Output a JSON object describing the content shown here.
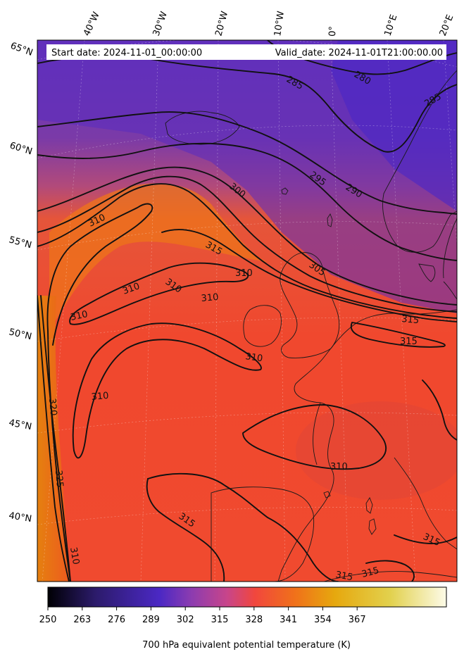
{
  "header": {
    "start_date": "Start date: 2024-11-01_00:00:00",
    "valid_date": "Valid_date: 2024-11-01T21:00:00.00"
  },
  "longitude_labels": [
    "40°W",
    "30°W",
    "20°W",
    "10°W",
    "0°",
    "10°E",
    "20°E"
  ],
  "latitude_labels": [
    "65°N",
    "60°N",
    "55°N",
    "50°N",
    "45°N",
    "40°N"
  ],
  "contour_labels": [
    "280",
    "285",
    "285",
    "295",
    "290",
    "300",
    "310",
    "315",
    "305",
    "310",
    "310",
    "310",
    "310",
    "310",
    "315",
    "315",
    "310",
    "310",
    "320",
    "325",
    "310",
    "315",
    "315",
    "310",
    "315",
    "315"
  ],
  "colorbar": {
    "ticks": [
      "250",
      "263",
      "276",
      "289",
      "302",
      "315",
      "328",
      "341",
      "354",
      "367"
    ],
    "label": "700 hPa equivalent potential temperature (K)",
    "colormap_stops": [
      "#000004",
      "#2c1b6b",
      "#4b28c4",
      "#8c3cb0",
      "#c8458a",
      "#f1473d",
      "#f0711a",
      "#e6a80e",
      "#e2d14e",
      "#fdfbe8"
    ]
  }
}
